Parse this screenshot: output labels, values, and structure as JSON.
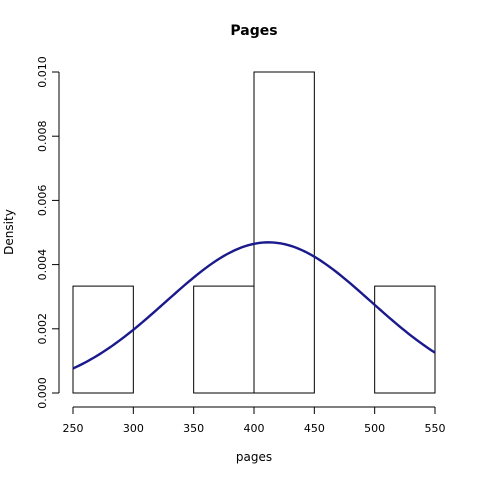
{
  "chart_data": {
    "type": "bar",
    "title": "Pages",
    "xlabel": "pages",
    "ylabel": "Density",
    "xlim": [
      250,
      550
    ],
    "ylim": [
      0,
      0.01
    ],
    "x_ticks": [
      "250",
      "300",
      "350",
      "400",
      "450",
      "500",
      "550"
    ],
    "y_ticks": [
      "0.000",
      "0.002",
      "0.004",
      "0.006",
      "0.008",
      "0.010"
    ],
    "bins": [
      {
        "start": 250,
        "end": 300,
        "density": 0.00333
      },
      {
        "start": 300,
        "end": 350,
        "density": 0
      },
      {
        "start": 350,
        "end": 400,
        "density": 0.00333
      },
      {
        "start": 400,
        "end": 450,
        "density": 0.01
      },
      {
        "start": 450,
        "end": 500,
        "density": 0
      },
      {
        "start": 500,
        "end": 550,
        "density": 0.00333
      }
    ],
    "density_curve": {
      "kind": "normal",
      "mean": 412,
      "sd": 85,
      "color": "#1a1a8c"
    }
  }
}
